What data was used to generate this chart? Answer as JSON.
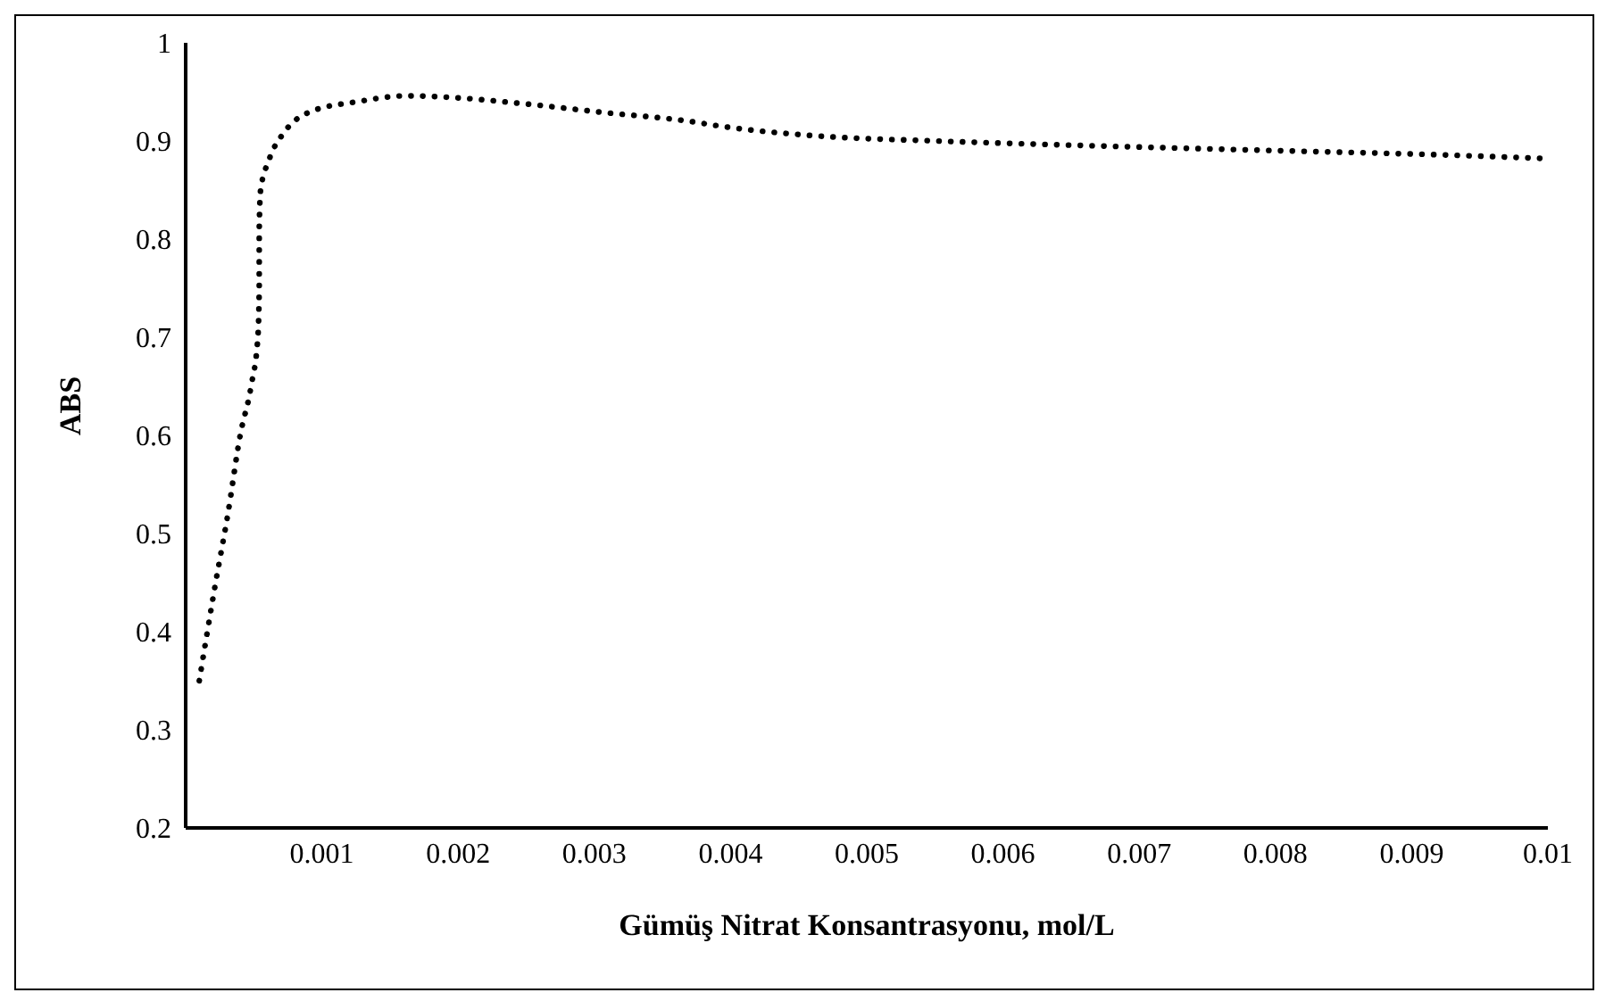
{
  "chart_data": {
    "type": "line",
    "xlabel": "Gümüş Nitrat Konsantrasyonu, mol/L",
    "ylabel": "ABS",
    "x": [
      0.0001,
      0.00022,
      0.00031,
      0.0004,
      0.00048,
      0.00053,
      0.00054,
      0.00054,
      0.00055,
      0.00061,
      0.00073,
      0.00092,
      0.00126,
      0.00162,
      0.00199,
      0.00248,
      0.00307,
      0.0037,
      0.00393,
      0.00465,
      0.00551,
      0.00669,
      0.00805,
      0.00918,
      0.01
    ],
    "series": [
      {
        "color": "#000000",
        "values": [
          0.35,
          0.45,
          0.52,
          0.6,
          0.65,
          0.7,
          0.75,
          0.81,
          0.85,
          0.88,
          0.91,
          0.93,
          0.94,
          0.946,
          0.944,
          0.938,
          0.929,
          0.92,
          0.915,
          0.905,
          0.9,
          0.895,
          0.89,
          0.886,
          0.882
        ]
      }
    ],
    "xlim": [
      0,
      0.01
    ],
    "xticks": [
      0.001,
      0.002,
      0.003,
      0.004,
      0.005,
      0.006,
      0.007,
      0.008,
      0.009,
      0.01
    ],
    "ylim": [
      0.2,
      1
    ],
    "yticks": [
      0.2,
      0.3,
      0.4,
      0.5,
      0.6,
      0.7,
      0.8,
      0.9,
      1
    ],
    "grid": false,
    "legend": false,
    "marker": "none",
    "line_style": "dotted"
  }
}
